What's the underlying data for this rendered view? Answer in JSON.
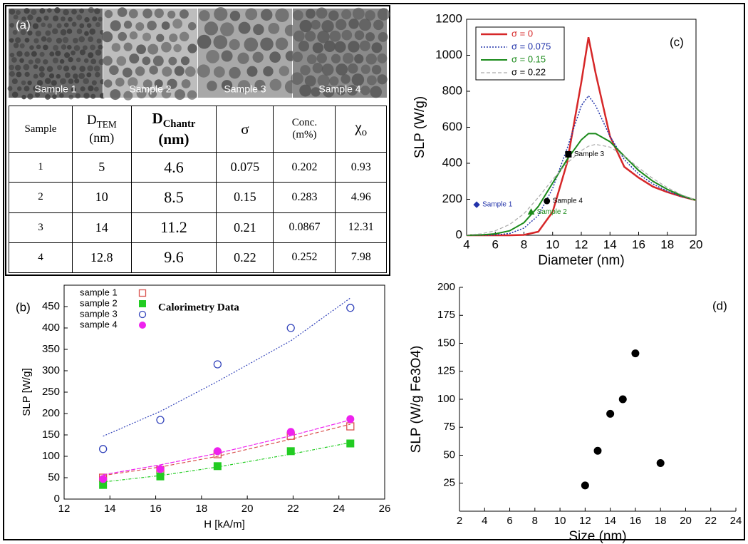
{
  "images": {
    "panel": "(a)",
    "labels": [
      "Sample 1",
      "Sample 2",
      "Sample 3",
      "Sample 4"
    ]
  },
  "table": {
    "header": [
      {
        "text": "Sample"
      },
      {
        "text": "D",
        "sub": "TEM",
        "unit": "(nm)"
      },
      {
        "text": "D",
        "sub": "Chantr",
        "unit": "(nm)"
      },
      {
        "text": "σ"
      },
      {
        "text": "Conc.",
        "unit": "(m%)"
      },
      {
        "text": "χ",
        "sub": "o"
      }
    ],
    "rows": [
      [
        1,
        5,
        4.6,
        0.075,
        0.202,
        0.93
      ],
      [
        2,
        10,
        8.5,
        0.15,
        0.283,
        4.96
      ],
      [
        3,
        14,
        11.2,
        0.21,
        0.0867,
        12.31
      ],
      [
        4,
        12.8,
        9.6,
        0.22,
        0.252,
        7.98
      ]
    ]
  },
  "chart_data": [
    {
      "type": "scatter",
      "panel": "(b)",
      "annotation": "Calorimetry Data",
      "xlabel": "H [kA/m]",
      "ylabel": "SLP [W/g]",
      "xlim": [
        12,
        26
      ],
      "xticks": [
        12,
        14,
        16,
        18,
        20,
        22,
        24,
        26
      ],
      "ylim": [
        0,
        500
      ],
      "yticks": [
        0,
        50,
        100,
        150,
        200,
        250,
        300,
        350,
        400,
        450
      ],
      "x": [
        13.7,
        16.2,
        18.7,
        21.9,
        24.5
      ],
      "series": [
        {
          "name": "sample 1",
          "color": "#d9534f",
          "marker": "square-open",
          "values": [
            50,
            68,
            105,
            148,
            170
          ],
          "fit": [
            55,
            75,
            100,
            140,
            175
          ],
          "fit_dash": "5 3"
        },
        {
          "name": "sample 2",
          "color": "#22cc22",
          "marker": "square",
          "values": [
            33,
            53,
            77,
            112,
            130
          ],
          "fit": [
            40,
            55,
            75,
            105,
            132
          ],
          "fit_dash": "4 2 1 2"
        },
        {
          "name": "sample 3",
          "color": "#3344bb",
          "marker": "circle-open",
          "values": [
            117,
            185,
            315,
            400,
            447
          ],
          "fit": [
            147,
            205,
            275,
            370,
            470
          ],
          "fit_dash": "2 2"
        },
        {
          "name": "sample 4",
          "color": "#ee22ee",
          "marker": "circle",
          "values": [
            47,
            70,
            112,
            157,
            187
          ],
          "fit": [
            57,
            80,
            107,
            148,
            185
          ],
          "fit_dash": "6 2"
        }
      ]
    },
    {
      "type": "line",
      "panel": "(c)",
      "xlabel": "Diameter (nm)",
      "ylabel": "SLP (W/g)",
      "xlim": [
        4,
        20
      ],
      "xticks": [
        4,
        6,
        8,
        10,
        12,
        14,
        16,
        18,
        20
      ],
      "ylim": [
        0,
        1200
      ],
      "yticks": [
        0,
        200,
        400,
        600,
        800,
        1000,
        1200
      ],
      "x": [
        4,
        5,
        6,
        7,
        8,
        9,
        10,
        11,
        12,
        12.5,
        13,
        14,
        15,
        16,
        17,
        18,
        19,
        20
      ],
      "series": [
        {
          "name": "σ = 0",
          "color": "#d62728",
          "label_color": "#d62728",
          "dash": "none",
          "width": 2.5,
          "values": [
            0,
            0,
            0,
            0,
            2,
            20,
            130,
            400,
            850,
            1100,
            900,
            550,
            380,
            320,
            270,
            240,
            215,
            195
          ]
        },
        {
          "name": "σ = 0.075",
          "color": "#2233aa",
          "label_color": "#2233aa",
          "dash": "2 2",
          "width": 1.5,
          "values": [
            0,
            0,
            2,
            10,
            40,
            110,
            260,
            480,
            720,
            775,
            720,
            550,
            420,
            340,
            285,
            245,
            215,
            195
          ]
        },
        {
          "name": "σ = 0.15",
          "color": "#1a8a1a",
          "label_color": "#1a8a1a",
          "dash": "none",
          "width": 2,
          "values": [
            0,
            2,
            8,
            25,
            70,
            160,
            290,
            420,
            530,
            565,
            565,
            520,
            440,
            360,
            300,
            255,
            220,
            195
          ]
        },
        {
          "name": "σ = 0.22",
          "color": "#aaaaaa",
          "label_color": "#000000",
          "dash": "5 3",
          "width": 1.2,
          "values": [
            2,
            8,
            25,
            60,
            120,
            210,
            310,
            400,
            470,
            495,
            505,
            490,
            440,
            375,
            315,
            265,
            225,
            195
          ]
        }
      ],
      "points": [
        {
          "label": "Sample 1",
          "x": 4.7,
          "y": 170,
          "color": "#2233aa",
          "marker": "diamond"
        },
        {
          "label": "Sample 2",
          "x": 8.5,
          "y": 130,
          "color": "#1a8a1a",
          "marker": "triangle"
        },
        {
          "label": "Sample 4",
          "x": 9.6,
          "y": 190,
          "color": "#000000",
          "marker": "circle"
        },
        {
          "label": "Sample 3",
          "x": 11.1,
          "y": 450,
          "color": "#000000",
          "marker": "square"
        }
      ]
    },
    {
      "type": "scatter",
      "panel": "(d)",
      "xlabel": "Size (nm)",
      "ylabel": "SLP (W/g Fe3O4)",
      "xlim": [
        2,
        24
      ],
      "xticks": [
        2,
        4,
        6,
        8,
        10,
        12,
        14,
        16,
        18,
        20,
        22,
        24
      ],
      "ylim": [
        0,
        200
      ],
      "yticks": [
        25,
        50,
        75,
        100,
        125,
        150,
        175,
        200
      ],
      "x": [
        12,
        13,
        14,
        15,
        16,
        18
      ],
      "series": [
        {
          "color": "#000000",
          "marker": "circle",
          "values": [
            23,
            54,
            87,
            100,
            141,
            43
          ]
        }
      ]
    }
  ]
}
